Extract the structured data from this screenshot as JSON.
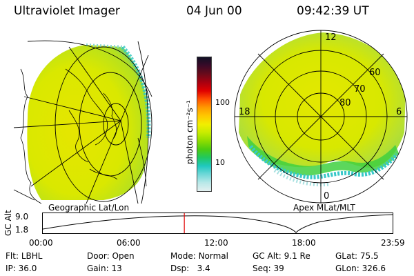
{
  "header": {
    "instrument": "Ultraviolet Imager",
    "date": "04 Jun 00",
    "time": "09:42:39 UT"
  },
  "left_panel": {
    "caption": "Geographic Lat/Lon"
  },
  "right_panel": {
    "caption": "Apex MLat/MLT",
    "mlt_labels": {
      "top": "12",
      "left": "18",
      "right": "6",
      "bottom": "0"
    },
    "lat_labels": [
      "60",
      "70",
      "80"
    ]
  },
  "colorbar": {
    "unit_label": "photon cm⁻²s⁻¹",
    "tick_100": "100",
    "tick_10": "10",
    "colors": [
      "#101024",
      "#3a0a28",
      "#6a0a1a",
      "#a80010",
      "#e00000",
      "#ff5000",
      "#ff9a00",
      "#ffc800",
      "#f2ee00",
      "#c8ec00",
      "#8edc00",
      "#4ccc10",
      "#20c860",
      "#20c8c0",
      "#70d8d8",
      "#b8e8e8",
      "#e4f0f0"
    ]
  },
  "timeline": {
    "y_label": "GC Alt",
    "y_ticks": [
      "9.0",
      "1.8"
    ],
    "x_ticks": [
      "00:00",
      "06:00",
      "12:00",
      "18:00",
      "23:59"
    ],
    "cursor_fraction": 0.4046
  },
  "footer": {
    "rows": [
      [
        {
          "k": "Flt:",
          "v": "LBHL"
        },
        {
          "k": "Door:",
          "v": "Open"
        },
        {
          "k": "Mode:",
          "v": "Normal"
        },
        {
          "k": "GC Alt:",
          "v": "9.1 Re"
        },
        {
          "k": "GLat:",
          "v": "75.5"
        }
      ],
      [
        {
          "k": "IP:",
          "v": "36.0"
        },
        {
          "k": "Gain:",
          "v": "13"
        },
        {
          "k": "Dsp:",
          "v": "3.4"
        },
        {
          "k": "Seq:",
          "v": "39"
        },
        {
          "k": "GLon:",
          "v": "326.6"
        }
      ]
    ]
  }
}
